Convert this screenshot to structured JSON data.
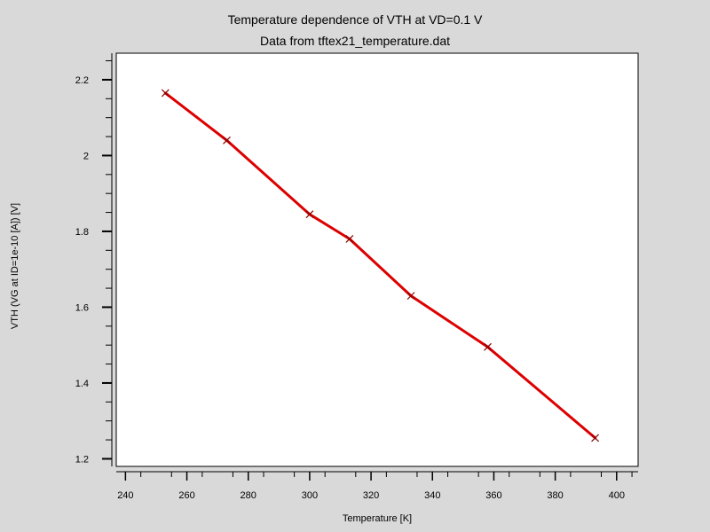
{
  "chart_data": {
    "type": "line",
    "title": "Temperature dependence of VTH at VD=0.1 V",
    "subtitle": "Data from tftex21_temperature.dat",
    "xlabel": "Temperature [K]",
    "ylabel": "VTH (VG at ID=1e-10 [A]) [V]",
    "xlim": [
      237,
      407
    ],
    "ylim": [
      1.18,
      2.27
    ],
    "x_ticks": [
      240,
      260,
      280,
      300,
      320,
      340,
      360,
      380,
      400
    ],
    "x_tick_labels": [
      "240",
      "260",
      "280",
      "300",
      "320",
      "340",
      "360",
      "380",
      "400"
    ],
    "y_ticks": [
      1.2,
      1.4,
      1.6,
      1.8,
      2.0,
      2.2
    ],
    "y_tick_labels": [
      "1.2",
      "1.4",
      "1.6",
      "1.8",
      "2",
      "2.2"
    ],
    "grid": false,
    "marker": "x",
    "colors": {
      "line": "#dd0000",
      "marker": "#880000",
      "background": "#d9d9d9",
      "plot_background": "#ffffff"
    },
    "series": [
      {
        "x": [
          253,
          273,
          300,
          313,
          333,
          358,
          393
        ],
        "values": [
          2.165,
          2.04,
          1.845,
          1.78,
          1.63,
          1.495,
          1.255
        ]
      }
    ]
  }
}
